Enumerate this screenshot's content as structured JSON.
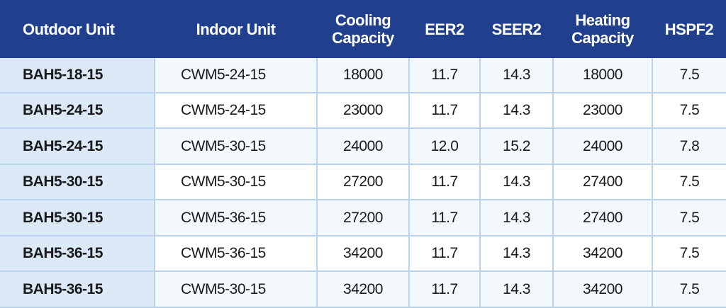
{
  "table": {
    "header": [
      "Outdoor Unit",
      "Indoor Unit",
      "Cooling Capacity",
      "EER2",
      "SEER2",
      "Heating Capacity",
      "HSPF2"
    ],
    "rows": [
      [
        "BAH5-18-15",
        "CWM5-24-15",
        "18000",
        "11.7",
        "14.3",
        "18000",
        "7.5"
      ],
      [
        "BAH5-24-15",
        "CWM5-24-15",
        "23000",
        "11.7",
        "14.3",
        "23000",
        "7.5"
      ],
      [
        "BAH5-24-15",
        "CWM5-30-15",
        "24000",
        "12.0",
        "15.2",
        "24000",
        "7.8"
      ],
      [
        "BAH5-30-15",
        "CWM5-30-15",
        "27200",
        "11.7",
        "14.3",
        "27400",
        "7.5"
      ],
      [
        "BAH5-30-15",
        "CWM5-36-15",
        "27200",
        "11.7",
        "14.3",
        "27400",
        "7.5"
      ],
      [
        "BAH5-36-15",
        "CWM5-36-15",
        "34200",
        "11.7",
        "14.3",
        "34200",
        "7.5"
      ],
      [
        "BAH5-36-15",
        "CWM5-30-15",
        "34200",
        "11.7",
        "14.3",
        "34200",
        "7.5"
      ]
    ]
  }
}
